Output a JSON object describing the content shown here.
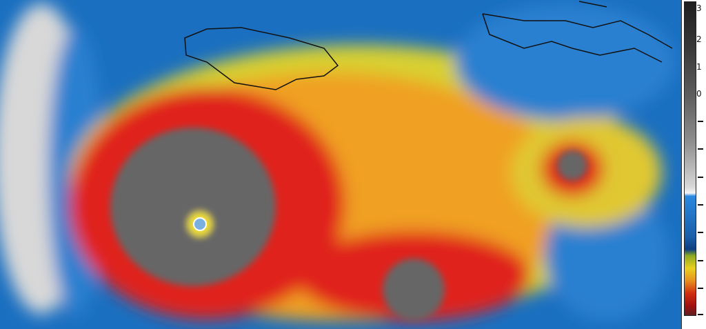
{
  "image": {
    "subject": "infrared-satellite-hurricane",
    "colors": {
      "eye_core": "#666666",
      "red": "#e0201a",
      "orange": "#f0a020",
      "yellow": "#e8d830",
      "blue": "#1a6fc0",
      "white": "#e8e8e8",
      "coastline": "#111111"
    }
  },
  "colorbar": {
    "labels": [
      "3",
      "2",
      "1",
      "0"
    ]
  }
}
